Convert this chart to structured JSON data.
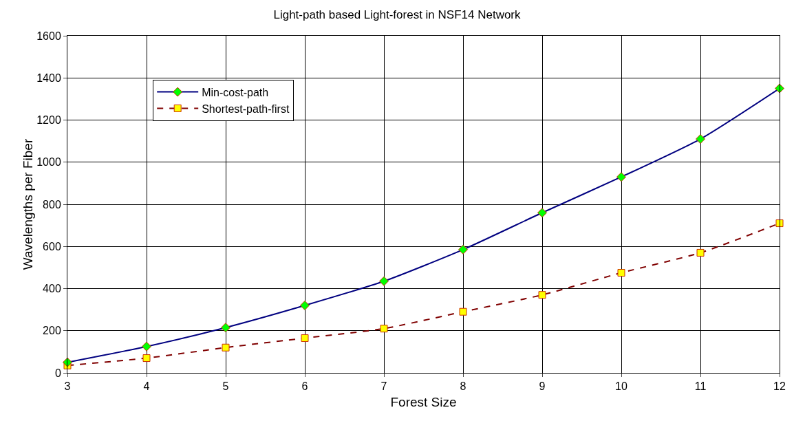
{
  "chart_data": {
    "type": "line",
    "title": "Light-path based Light-forest in NSF14 Network",
    "xlabel": "Forest Size",
    "ylabel": "Wavelengths per Fiber",
    "x": [
      3,
      4,
      5,
      6,
      7,
      8,
      9,
      10,
      11,
      12
    ],
    "series": [
      {
        "name": "Min-cost-path",
        "color": "#000080",
        "marker": "diamond",
        "line_style": "solid",
        "values": [
          50,
          125,
          215,
          320,
          435,
          585,
          760,
          930,
          1110,
          1350
        ]
      },
      {
        "name": "Shortest-path-first",
        "color": "#800000",
        "marker": "square",
        "line_style": "dashed",
        "values": [
          35,
          70,
          120,
          165,
          210,
          290,
          370,
          475,
          570,
          710
        ]
      }
    ],
    "xlim": [
      3,
      12
    ],
    "xticks": [
      3,
      4,
      5,
      6,
      7,
      8,
      9,
      10,
      11,
      12
    ],
    "ylim": [
      0,
      1600
    ],
    "yticks": [
      0,
      200,
      400,
      600,
      800,
      1000,
      1200,
      1400,
      1600
    ],
    "grid": true,
    "legend": "top left"
  }
}
